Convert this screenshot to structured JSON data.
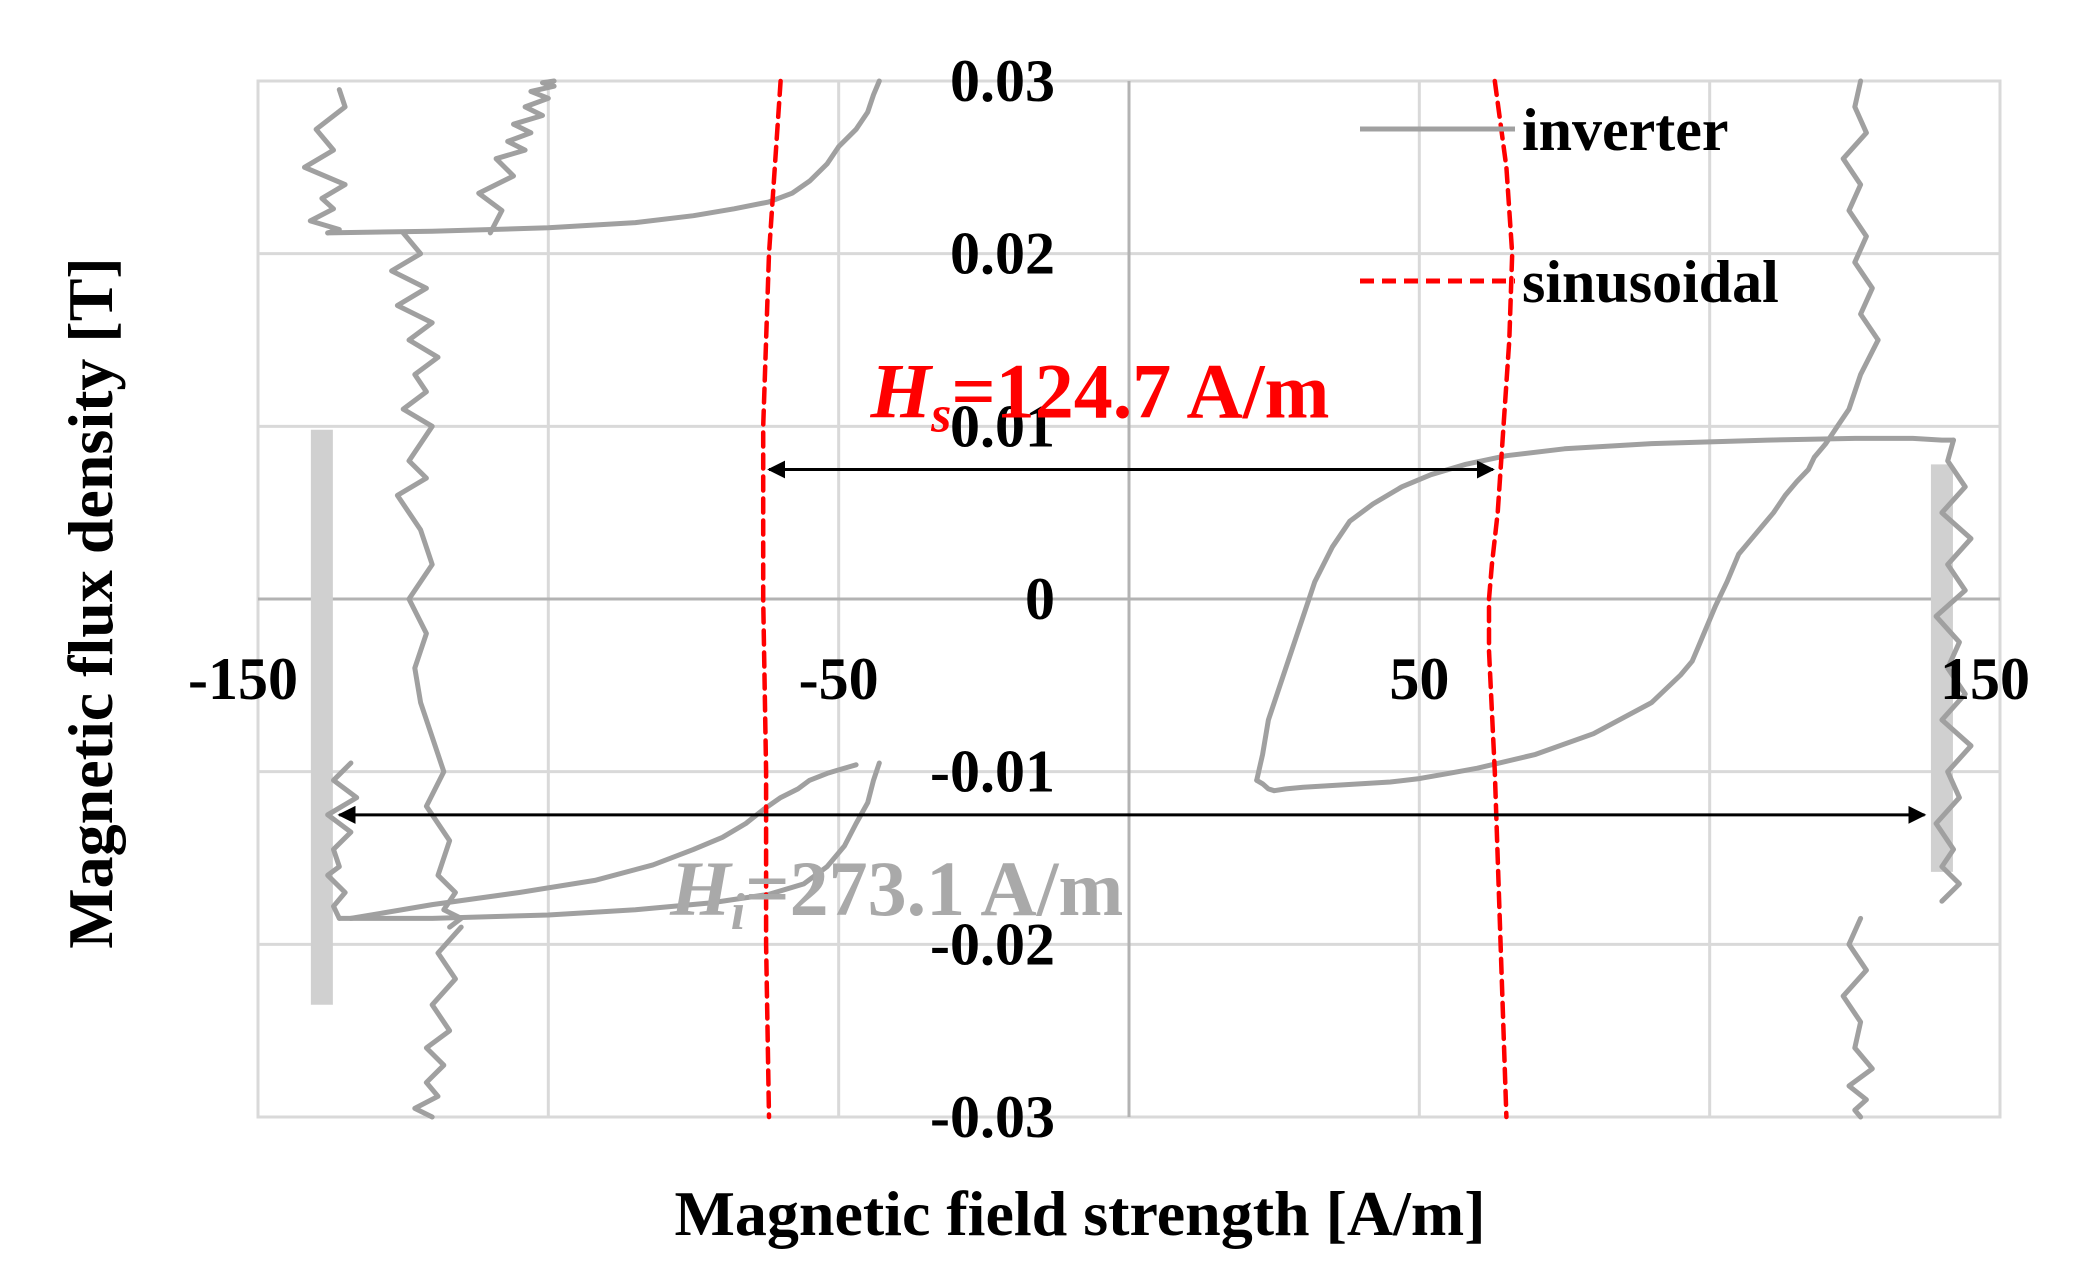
{
  "chart_data": {
    "type": "line",
    "title": "",
    "xlabel": "Magnetic field strength [A/m]",
    "ylabel": "Magnetic flux density [T]",
    "xlim": [
      -150,
      150
    ],
    "ylim": [
      -0.03,
      0.03
    ],
    "x_ticks": [
      {
        "value": -150,
        "label": "-150"
      },
      {
        "value": -50,
        "label": "-50"
      },
      {
        "value": 50,
        "label": "50"
      },
      {
        "value": 150,
        "label": "150"
      }
    ],
    "y_ticks": [
      {
        "value": 0.03,
        "label": "0.03"
      },
      {
        "value": 0.02,
        "label": "0.02"
      },
      {
        "value": 0.01,
        "label": "0.01"
      },
      {
        "value": 0,
        "label": "0"
      },
      {
        "value": -0.01,
        "label": "-0.01"
      },
      {
        "value": -0.02,
        "label": "-0.02"
      },
      {
        "value": -0.03,
        "label": "-0.03"
      }
    ],
    "x_gridlines": [
      -150,
      -100,
      -50,
      0,
      50,
      100,
      150
    ],
    "y_gridlines": [
      -0.03,
      -0.02,
      -0.01,
      0,
      0.01,
      0.02,
      0.03
    ],
    "grid": true,
    "legend_position": "top-right",
    "series": [
      {
        "name": "inverter",
        "color": "#a0a0a0",
        "style": "solid",
        "segments": [
          {
            "x": [
              -136,
              -135,
              -140,
              -137,
              -142,
              -135,
              -139,
              -137,
              -141,
              -136,
              -138
            ],
            "y": [
              0.0295,
              0.0285,
              0.0272,
              0.026,
              0.025,
              0.024,
              0.0232,
              0.0226,
              0.0219,
              0.0214,
              0.0212
            ]
          },
          {
            "x": [
              -138,
              -120,
              -100,
              -85,
              -75,
              -68,
              -62,
              -58,
              -55,
              -52,
              -50,
              -47,
              -45,
              -44,
              -43
            ],
            "y": [
              0.0212,
              0.0213,
              0.0215,
              0.0218,
              0.0222,
              0.0226,
              0.023,
              0.0235,
              0.0242,
              0.0252,
              0.0262,
              0.0272,
              0.0282,
              0.0292,
              0.03
            ]
          },
          {
            "x": [
              -110,
              -108,
              -112,
              -106,
              -109,
              -104,
              -107,
              -103,
              -106,
              -101,
              -104,
              -100,
              -103,
              -99,
              -101,
              -99
            ],
            "y": [
              0.0212,
              0.0225,
              0.0235,
              0.0245,
              0.0255,
              0.026,
              0.0265,
              0.027,
              0.0275,
              0.028,
              0.0285,
              0.029,
              0.0294,
              0.0297,
              0.0299,
              0.03
            ]
          },
          {
            "x": [
              -125,
              -122,
              -127,
              -121,
              -126,
              -120,
              -124,
              -119,
              -123,
              -121,
              -125,
              -120,
              -122,
              -124,
              -121,
              -126,
              -122,
              -120,
              -124,
              -121,
              -123,
              -122,
              -120,
              -118,
              -121,
              -117,
              -119,
              -116,
              -118,
              -115,
              -117
            ],
            "y": [
              0.0212,
              0.02,
              0.019,
              0.018,
              0.017,
              0.016,
              0.015,
              0.014,
              0.013,
              0.012,
              0.011,
              0.01,
              0.009,
              0.008,
              0.007,
              0.006,
              0.004,
              0.002,
              0,
              -0.002,
              -0.004,
              -0.006,
              -0.008,
              -0.01,
              -0.012,
              -0.014,
              -0.016,
              -0.017,
              -0.018,
              -0.0185,
              -0.019
            ]
          },
          {
            "x": [
              -134,
              -137,
              -133,
              -138,
              -134,
              -137,
              -136,
              -138,
              -135,
              -137,
              -136
            ],
            "y": [
              -0.0095,
              -0.0105,
              -0.0115,
              -0.0125,
              -0.0135,
              -0.0145,
              -0.0155,
              -0.016,
              -0.017,
              -0.0178,
              -0.0185
            ]
          },
          {
            "x": [
              -136,
              -120,
              -100,
              -85,
              -72,
              -62,
              -56,
              -52,
              -49,
              -47,
              -45,
              -44,
              -43
            ],
            "y": [
              -0.0185,
              -0.0185,
              -0.0183,
              -0.018,
              -0.0176,
              -0.0171,
              -0.0165,
              -0.0155,
              -0.0143,
              -0.013,
              -0.0118,
              -0.0105,
              -0.0095
            ]
          },
          {
            "x": [
              -134,
              -120,
              -105,
              -92,
              -82,
              -75,
              -70,
              -66,
              -63,
              -60,
              -57,
              -55,
              -52,
              -50,
              -48,
              -47
            ],
            "y": [
              -0.0185,
              -0.0177,
              -0.017,
              -0.0163,
              -0.0154,
              -0.0145,
              -0.0138,
              -0.013,
              -0.0122,
              -0.0115,
              -0.011,
              -0.0105,
              -0.0101,
              -0.0099,
              -0.0097,
              -0.0096
            ]
          },
          {
            "x": [
              -115,
              -119,
              -116,
              -120,
              -117,
              -121,
              -118,
              -121,
              -119,
              -123,
              -120
            ],
            "y": [
              -0.019,
              -0.0205,
              -0.022,
              -0.0235,
              -0.025,
              -0.026,
              -0.027,
              -0.028,
              -0.0288,
              -0.0295,
              -0.03
            ]
          },
          {
            "x": [
              126,
              125,
              127,
              123,
              126,
              124,
              127,
              125,
              128,
              126,
              129
            ],
            "y": [
              0.03,
              0.0285,
              0.027,
              0.0255,
              0.024,
              0.0225,
              0.021,
              0.0195,
              0.018,
              0.0165,
              0.015
            ]
          },
          {
            "x": [
              129,
              126,
              125,
              124,
              122,
              121,
              120,
              118,
              117,
              115,
              113,
              111,
              109,
              107,
              105,
              104,
              103,
              102,
              101,
              100,
              99,
              98,
              97,
              95,
              90,
              80,
              70,
              60,
              55,
              50,
              45,
              40,
              35,
              30,
              27,
              25,
              24,
              23,
              22
            ],
            "y": [
              0.015,
              0.013,
              0.012,
              0.011,
              0.01,
              0.0095,
              0.009,
              0.0082,
              0.0075,
              0.0068,
              0.006,
              0.005,
              0.0042,
              0.0034,
              0.0026,
              0.0018,
              0.001,
              0.0003,
              -0.0004,
              -0.0012,
              -0.002,
              -0.0028,
              -0.0036,
              -0.0044,
              -0.006,
              -0.0078,
              -0.009,
              -0.0098,
              -0.0101,
              -0.0104,
              -0.0106,
              -0.0107,
              -0.0108,
              -0.0109,
              -0.011,
              -0.0111,
              -0.011,
              -0.0107,
              -0.0105
            ]
          },
          {
            "x": [
              22,
              23,
              24,
              26,
              28,
              30,
              32,
              35,
              38,
              42,
              47,
              52,
              58,
              65,
              75,
              90,
              110,
              125,
              135,
              140,
              142
            ],
            "y": [
              -0.0105,
              -0.009,
              -0.007,
              -0.005,
              -0.003,
              -0.001,
              0.001,
              0.003,
              0.0045,
              0.0055,
              0.0065,
              0.0072,
              0.0078,
              0.0083,
              0.0087,
              0.009,
              0.0092,
              0.0093,
              0.0093,
              0.0092,
              0.0092
            ]
          },
          {
            "x": [
              142,
              141,
              144,
              140,
              145,
              141,
              144,
              139,
              143,
              141,
              144,
              140,
              145,
              141,
              143,
              139,
              142,
              140,
              143,
              140
            ],
            "y": [
              0.0092,
              0.008,
              0.0065,
              0.005,
              0.0035,
              0.002,
              0.0005,
              -0.001,
              -0.0025,
              -0.004,
              -0.0055,
              -0.007,
              -0.0085,
              -0.01,
              -0.0115,
              -0.013,
              -0.0145,
              -0.0155,
              -0.0165,
              -0.0175
            ]
          },
          {
            "x": [
              126,
              124,
              127,
              123,
              126,
              125,
              128,
              124,
              127,
              125,
              126
            ],
            "y": [
              -0.0185,
              -0.02,
              -0.0215,
              -0.023,
              -0.0245,
              -0.026,
              -0.0272,
              -0.0282,
              -0.029,
              -0.0296,
              -0.03
            ]
          }
        ]
      },
      {
        "name": "sinusoidal",
        "color": "#ff0000",
        "style": "dashed",
        "segments": [
          {
            "x": [
              -60,
              -61,
              -62,
              -62.5,
              -63,
              -63,
              -63,
              -62.5,
              -62.5,
              -62
            ],
            "y": [
              0.03,
              0.025,
              0.02,
              0.015,
              0.01,
              0.005,
              0,
              -0.01,
              -0.02,
              -0.03
            ]
          },
          {
            "x": [
              63,
              65,
              66,
              65.5,
              64.5,
              63.5,
              62.5,
              62,
              62,
              63,
              64,
              65
            ],
            "y": [
              0.03,
              0.025,
              0.02,
              0.015,
              0.01,
              0.005,
              0.002,
              0,
              -0.003,
              -0.01,
              -0.02,
              -0.03
            ]
          }
        ]
      }
    ],
    "bands": [
      {
        "x": -139,
        "y_from": -0.0235,
        "y_to": 0.0098,
        "color": "#d0d0d0"
      },
      {
        "x": 140,
        "y_from": -0.0158,
        "y_to": 0.0078,
        "color": "#d0d0d0"
      }
    ],
    "annotations": [
      {
        "name": "hs",
        "label_italic": "H",
        "label_sub": "s",
        "label_rest": "=124.7 A/m",
        "color": "#ff0000",
        "arrow_from_x": -62,
        "arrow_to_x": 62.7,
        "arrow_y": 0.0075,
        "text_x": -5,
        "text_y": 0.0105
      },
      {
        "name": "hi",
        "label_italic": "H",
        "label_sub": "i",
        "label_rest": "=273.1 A/m",
        "color": "#a9a9a9",
        "arrow_from_x": -136,
        "arrow_to_x": 137,
        "arrow_y": -0.0125,
        "text_x": -40,
        "text_y": -0.0183
      }
    ]
  }
}
